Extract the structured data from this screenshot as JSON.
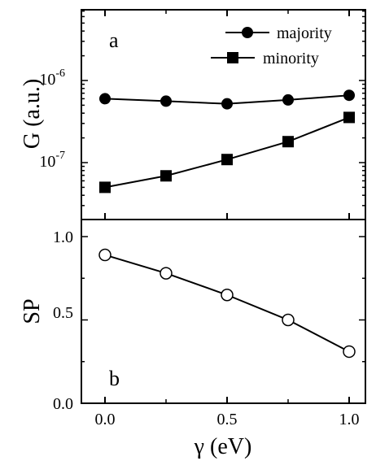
{
  "chart_data": [
    {
      "panel_label": "a",
      "type": "line",
      "ylabel": "G (a.u.)",
      "yscale": "log",
      "ylim": [
        2e-08,
        4e-06
      ],
      "yticks": [
        {
          "value": 1e-07,
          "base": "10",
          "exp": "-7"
        },
        {
          "value": 1e-06,
          "base": "10",
          "exp": "-6"
        }
      ],
      "x": [
        0.0,
        0.25,
        0.5,
        0.75,
        1.0
      ],
      "series": [
        {
          "name": "majority",
          "marker": "filled-circle",
          "values": [
            6e-07,
            5.6e-07,
            5.2e-07,
            5.8e-07,
            6.6e-07
          ]
        },
        {
          "name": "minority",
          "marker": "filled-square",
          "values": [
            5e-08,
            6.9e-08,
            1.09e-07,
            1.8e-07,
            3.55e-07
          ]
        }
      ],
      "legend_position": "top-right"
    },
    {
      "panel_label": "b",
      "type": "line",
      "ylabel": "SP",
      "ylim": [
        0.0,
        1.1
      ],
      "yticks": [
        "0.0",
        "0.5",
        "1.0"
      ],
      "xlabel": "γ (eV)",
      "xlim": [
        -0.1,
        1.05
      ],
      "xticks": [
        "0.0",
        "0.5",
        "1.0"
      ],
      "x": [
        0.0,
        0.25,
        0.5,
        0.75,
        1.0
      ],
      "series": [
        {
          "marker": "open-circle",
          "values": [
            0.89,
            0.78,
            0.65,
            0.5,
            0.31
          ]
        }
      ]
    }
  ]
}
